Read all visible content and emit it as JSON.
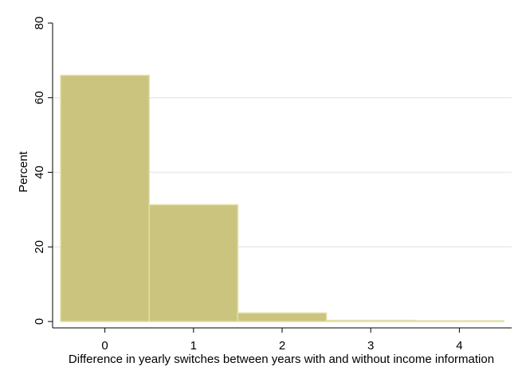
{
  "chart_data": {
    "type": "bar",
    "title": "",
    "xlabel": "Difference in yearly switches between years with and without income information",
    "ylabel": "Percent",
    "categories": [
      "0",
      "1",
      "2",
      "3",
      "4"
    ],
    "x": [
      0,
      1,
      2,
      3,
      4
    ],
    "values": [
      66.0,
      31.3,
      2.3,
      0.3,
      0.2
    ],
    "xlim": [
      -0.5,
      4.5
    ],
    "ylim": [
      0,
      80
    ],
    "xticks": [
      "0",
      "1",
      "2",
      "3",
      "4"
    ],
    "yticks": [
      "0",
      "20",
      "40",
      "60",
      "80"
    ],
    "grid": true,
    "legend": "none",
    "colors": {
      "bar_fill": "#cbc47f",
      "bar_edge": "#e3dfa8",
      "grid": "#eaeaea",
      "axis": "#000000"
    }
  }
}
